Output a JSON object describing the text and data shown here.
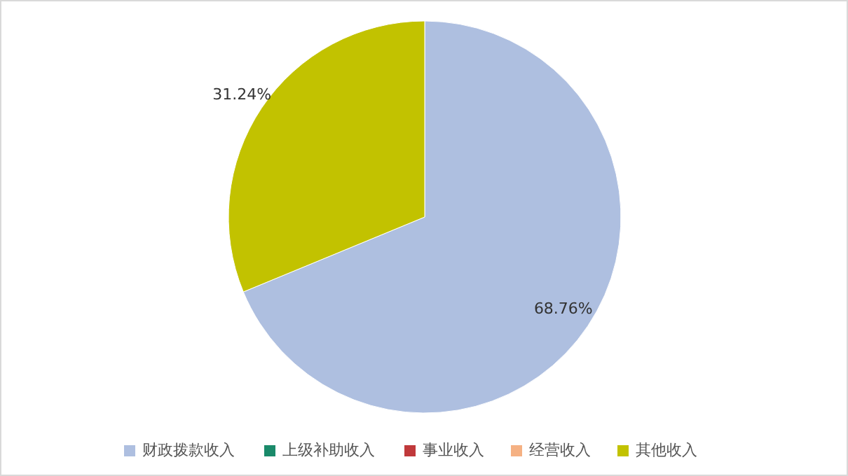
{
  "chart_data": {
    "type": "pie",
    "categories": [
      "财政拨款收入",
      "上级补助收入",
      "事业收入",
      "经营收入",
      "其他收入"
    ],
    "values": [
      68.76,
      0,
      0,
      0,
      31.24
    ],
    "colors": [
      "#aebfe0",
      "#1a8a6a",
      "#c0393b",
      "#f5b183",
      "#c2c200"
    ],
    "value_labels": [
      "68.76%",
      null,
      null,
      null,
      "31.24%"
    ],
    "legend": "bottom"
  }
}
